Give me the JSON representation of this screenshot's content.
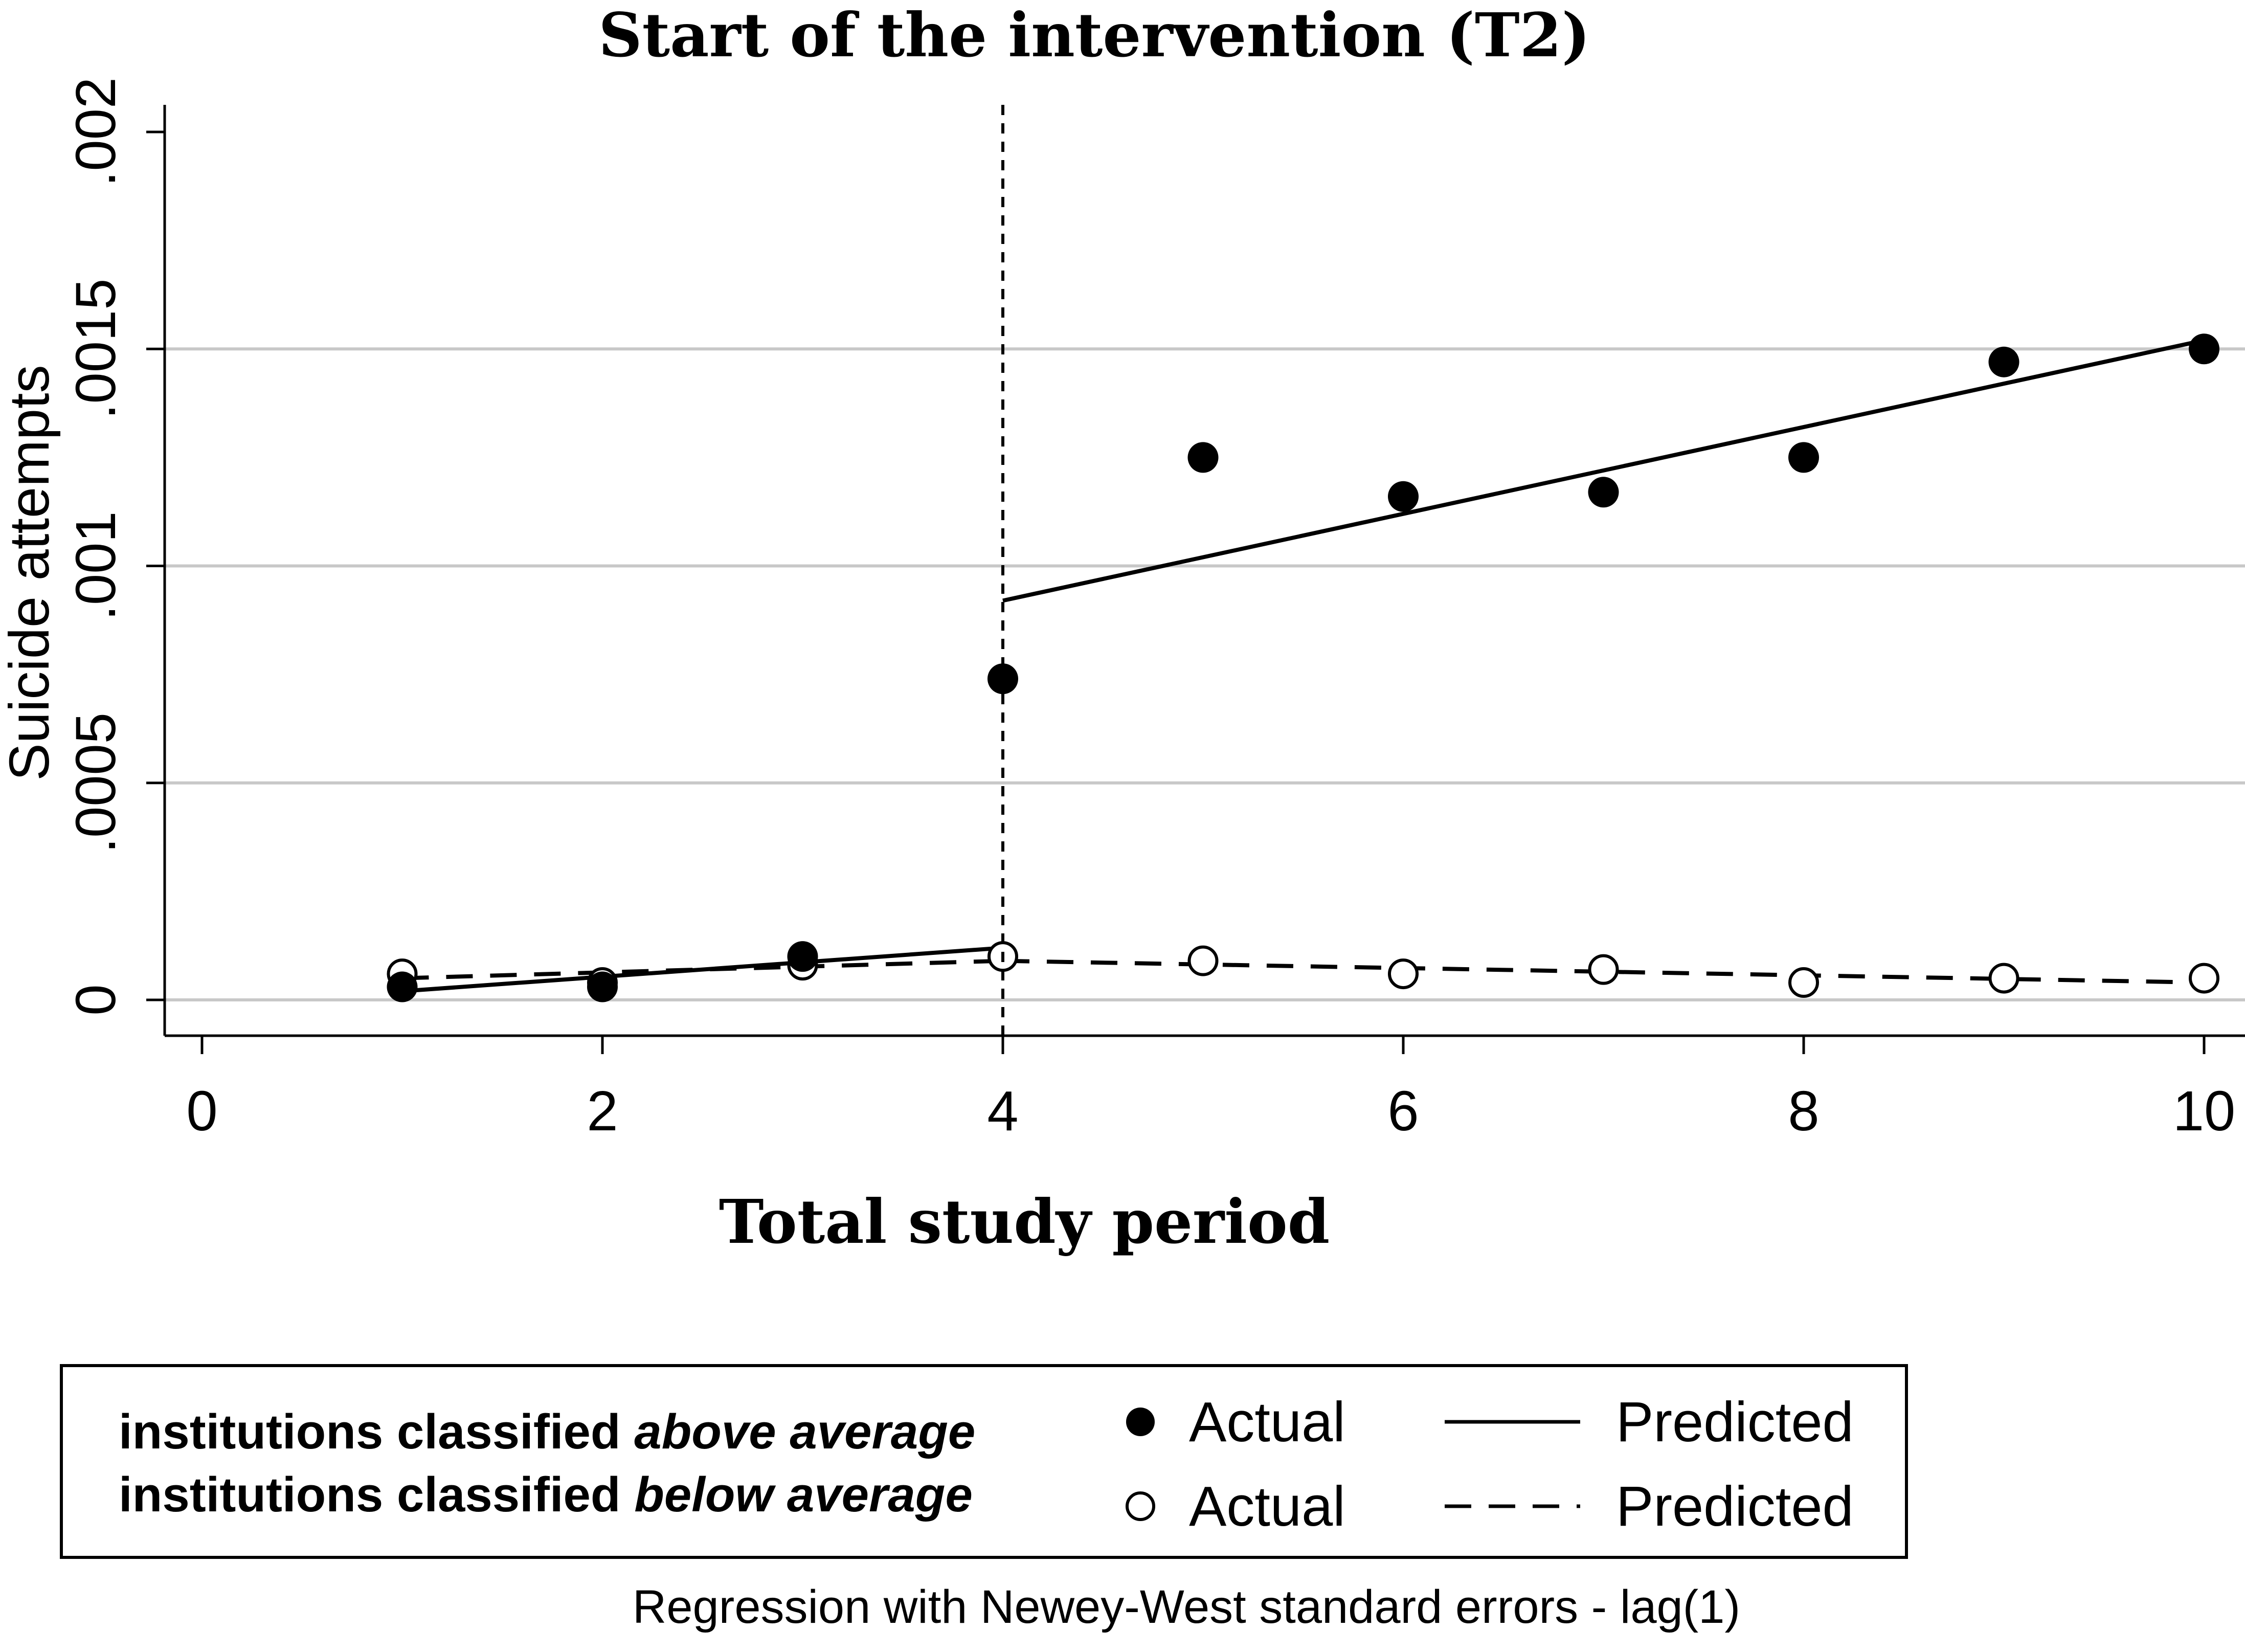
{
  "chart_data": {
    "type": "scatter",
    "title": "Start of the intervention (T2)",
    "xlabel": "Total study period",
    "ylabel": "Suicide attempts",
    "xlim": [
      0,
      10
    ],
    "ylim": [
      0,
      0.002
    ],
    "x_ticks": [
      0,
      2,
      4,
      6,
      8,
      10
    ],
    "x_tick_labels": [
      "0",
      "2",
      "4",
      "6",
      "8",
      "10"
    ],
    "y_ticks": [
      0,
      0.0005,
      0.001,
      0.0015,
      0.002
    ],
    "y_tick_labels": [
      "0",
      ".0005",
      ".001",
      ".0015",
      ".002"
    ],
    "grid": true,
    "intervention_x": 4,
    "series": [
      {
        "name": "institutions classified above average - Actual",
        "marker": "filled-circle",
        "x": [
          1,
          2,
          3,
          4,
          5,
          6,
          7,
          8,
          9,
          10
        ],
        "values": [
          3e-05,
          3e-05,
          0.0001,
          0.00074,
          0.00125,
          0.00116,
          0.00117,
          0.00125,
          0.00147,
          0.0015
        ]
      },
      {
        "name": "institutions classified below average - Actual",
        "marker": "hollow-circle",
        "x": [
          1,
          2,
          3,
          4,
          5,
          6,
          7,
          8,
          9,
          10
        ],
        "values": [
          6e-05,
          4e-05,
          8e-05,
          0.0001,
          9e-05,
          6e-05,
          7e-05,
          4e-05,
          5e-05,
          5e-05
        ]
      }
    ],
    "fit_lines": [
      {
        "name": "institutions classified above average - Predicted (pre)",
        "style": "solid",
        "x": [
          1,
          4
        ],
        "values": [
          2e-05,
          0.00012
        ]
      },
      {
        "name": "institutions classified above average - Predicted (post)",
        "style": "solid",
        "x": [
          4,
          10
        ],
        "values": [
          0.00092,
          0.00152
        ]
      },
      {
        "name": "institutions classified below average - Predicted (pre)",
        "style": "dashed",
        "x": [
          1,
          4
        ],
        "values": [
          5e-05,
          9e-05
        ]
      },
      {
        "name": "institutions classified below average - Predicted (post)",
        "style": "dashed",
        "x": [
          4,
          10
        ],
        "values": [
          9e-05,
          4e-05
        ]
      }
    ],
    "legend": {
      "position": "bottom",
      "row1_prefix": "institutions classified ",
      "row1_emph": "above average",
      "row2_prefix": "institutions classified ",
      "row2_emph": "below average",
      "actual_label": "Actual",
      "predicted_label": "Predicted"
    },
    "note": "Regression with Newey-West standard errors - lag(1)"
  }
}
